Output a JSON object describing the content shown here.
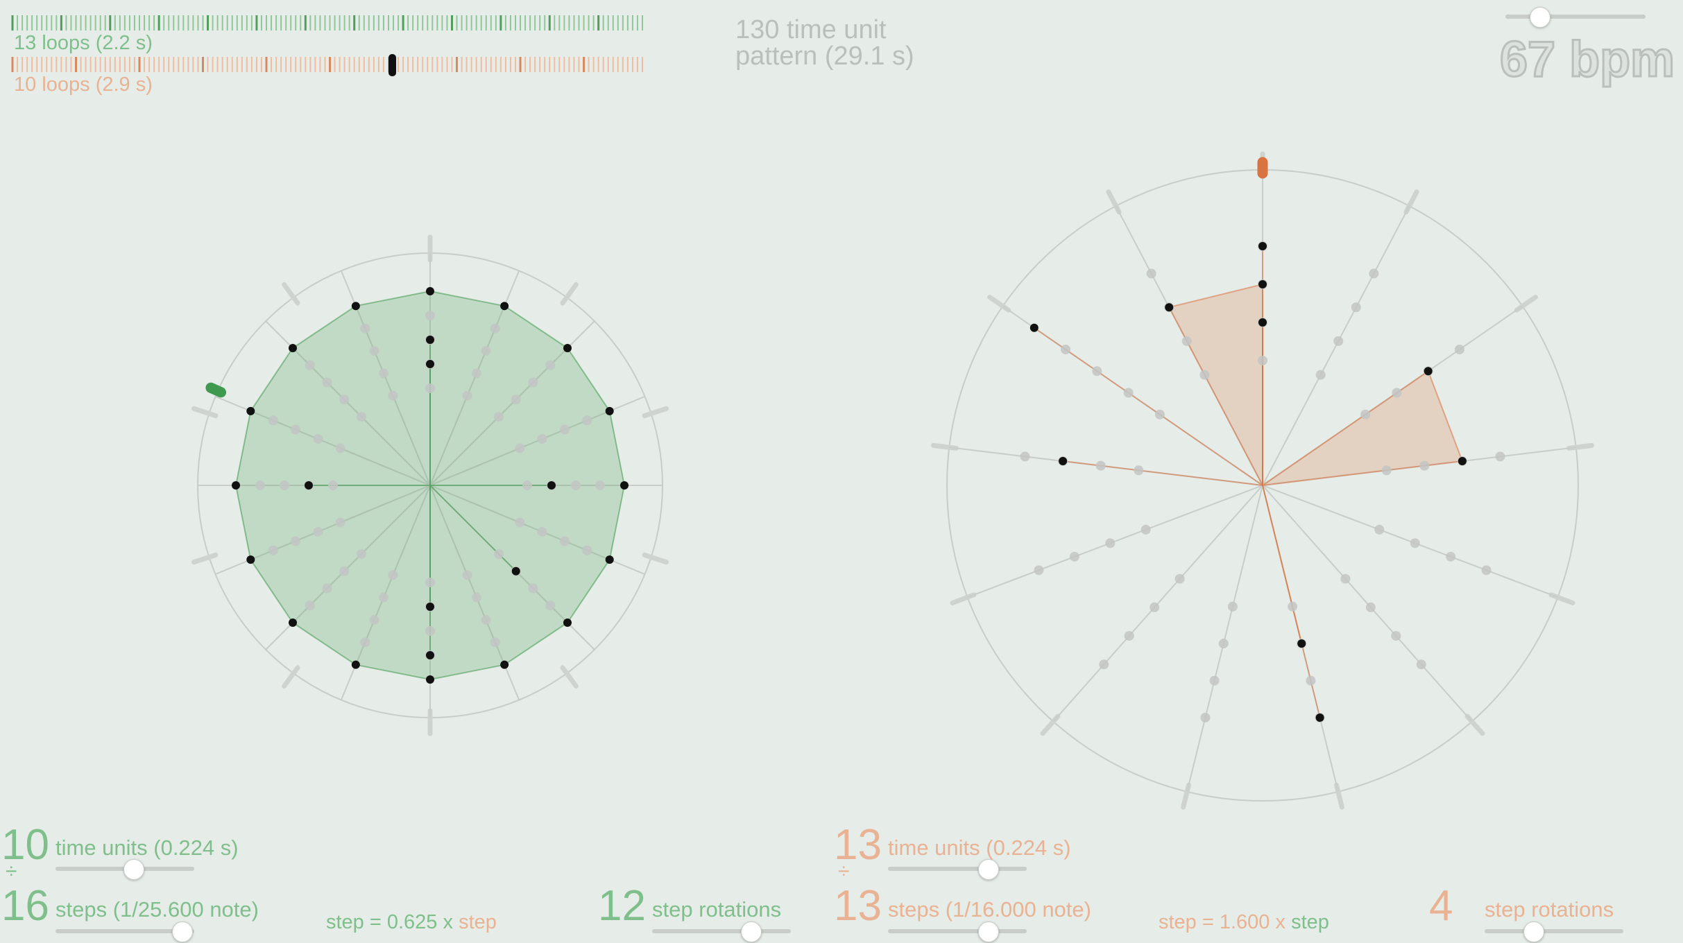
{
  "header": {
    "loops_a": "13 loops (2.2 s)",
    "loops_b": "10 loops (2.9 s)",
    "pattern_line1": "130 time unit",
    "pattern_line2": "pattern (29.1 s)",
    "tempo_label": "67 bpm",
    "tempo_slider": 0.25
  },
  "left": {
    "color": "#3f9a4f",
    "time_units_value": "10",
    "time_units_label": "time units (0.224 s)",
    "divide_symbol": "÷",
    "steps_value": "16",
    "steps_label": "steps (1/25.600 note)",
    "ratio_prefix": "step = 0.625 x ",
    "ratio_suffix": "step",
    "rotations_value": "12",
    "rotations_label": "step rotations",
    "time_units_slider": 0.55,
    "steps_slider": 0.9,
    "rotations_slider": 0.7
  },
  "right": {
    "color": "#d9733f",
    "time_units_value": "13",
    "time_units_label": "time units (0.224 s)",
    "divide_symbol": "÷",
    "steps_value": "13",
    "steps_label": "steps (1/16.000 note)",
    "ratio_prefix": "step = 1.600 x ",
    "ratio_suffix": "step",
    "rotations_value": "4",
    "rotations_label": "step rotations",
    "time_units_slider": 0.72,
    "steps_slider": 0.72,
    "rotations_slider": 0.35
  },
  "wheel_left": {
    "spokes": 16,
    "outer_ticks": 10,
    "playhead_angle_deg": 294,
    "polygons": [
      {
        "levels": [
          5,
          5,
          5,
          5,
          5,
          5,
          5,
          5,
          5,
          5,
          5,
          5,
          5,
          5,
          5,
          5
        ]
      },
      {
        "levels": [
          2,
          0,
          0,
          0,
          2,
          0,
          0,
          0,
          2,
          0,
          0,
          0,
          2,
          0,
          0,
          0
        ]
      },
      {
        "levels": [
          3,
          0,
          0,
          0,
          0,
          0,
          2,
          0,
          4,
          0,
          0,
          0,
          0,
          0,
          0,
          0
        ]
      }
    ]
  },
  "wheel_right": {
    "spokes": 13,
    "outer_ticks": 13,
    "playhead_angle_deg": 0,
    "polygons": [
      {
        "levels": [
          4,
          0,
          0,
          0,
          0,
          0,
          4,
          0,
          0,
          0,
          0,
          5,
          0
        ]
      },
      {
        "levels": [
          3,
          0,
          0,
          0,
          0,
          0,
          0,
          0,
          0,
          0,
          3,
          0,
          3
        ]
      },
      {
        "levels": [
          2,
          0,
          3,
          3,
          0,
          0,
          2,
          0,
          0,
          0,
          0,
          0,
          0
        ]
      }
    ]
  }
}
